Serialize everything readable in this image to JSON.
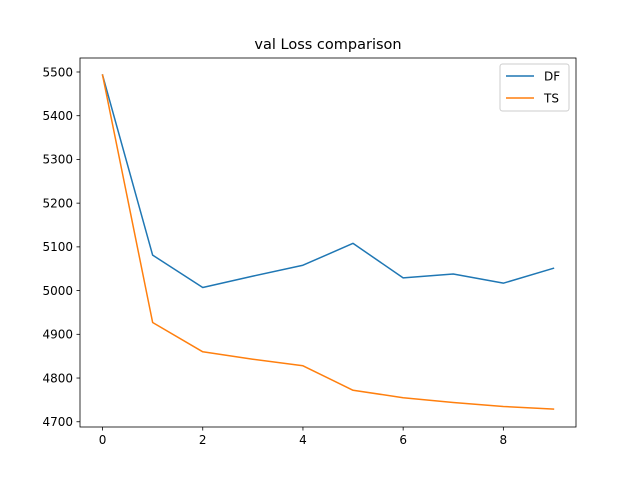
{
  "chart_data": {
    "type": "line",
    "title": "val Loss comparison",
    "xlabel": "",
    "ylabel": "",
    "x": [
      0,
      1,
      2,
      3,
      4,
      5,
      6,
      7,
      8,
      9
    ],
    "xlim": [
      -0.45,
      9.45
    ],
    "ylim": [
      4688,
      5532
    ],
    "xticks": [
      0,
      2,
      4,
      6,
      8
    ],
    "yticks": [
      4700,
      4800,
      4900,
      5000,
      5100,
      5200,
      5300,
      5400,
      5500
    ],
    "grid": false,
    "legend_position": "top-right",
    "series": [
      {
        "name": "DF",
        "color": "#1f77b4",
        "values": [
          5493,
          5081,
          5007,
          5033,
          5058,
          5108,
          5029,
          5038,
          5017,
          5051
        ]
      },
      {
        "name": "TS",
        "color": "#ff7f0e",
        "values": [
          5493,
          4927,
          4860,
          4843,
          4828,
          4772,
          4755,
          4744,
          4735,
          4729
        ]
      }
    ]
  }
}
